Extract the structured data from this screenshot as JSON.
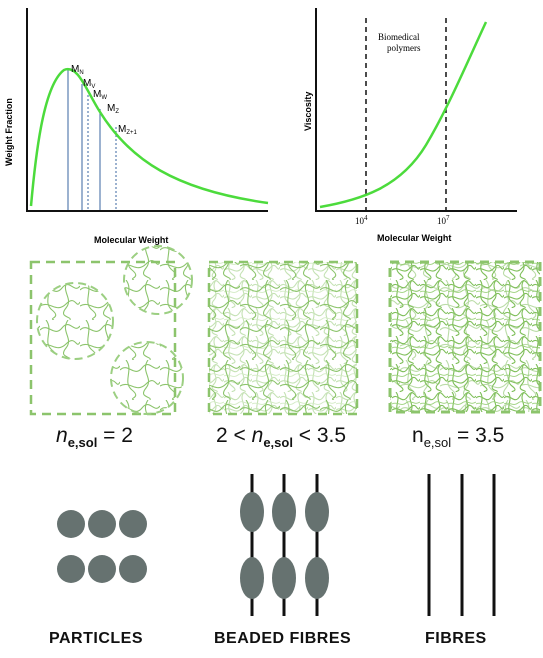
{
  "weight_chart": {
    "xlabel": "Molecular Weight",
    "ylabel": "Weight Fraction",
    "markers": [
      {
        "label": "M",
        "sub": "N"
      },
      {
        "label": "M",
        "sub": "V"
      },
      {
        "label": "M",
        "sub": "W"
      },
      {
        "label": "M",
        "sub": "Z"
      },
      {
        "label": "M",
        "sub": "Z+1"
      }
    ],
    "curve_color": "#4cdb3c",
    "marker_line_color": "#5a7fb0"
  },
  "viscosity_chart": {
    "xlabel": "Molecular Weight",
    "ylabel": "Viscosity",
    "region_label_line1": "Biomedical",
    "region_label_line2": "polymers",
    "tick1_base": "10",
    "tick1_exp": "4",
    "tick2_base": "10",
    "tick2_exp": "7",
    "curve_color": "#4cdb3c"
  },
  "entanglement": {
    "panels": [
      {
        "n": "n",
        "sub": "e,sol",
        "relation_prefix": "",
        "relation_suffix": " = 2"
      },
      {
        "n": "n",
        "sub": "e,sol",
        "relation_prefix": "2 < ",
        "relation_suffix": " < 3.5"
      },
      {
        "n": "n",
        "sub": "e,sol",
        "relation_prefix": "",
        "relation_suffix": " = 3.5"
      }
    ],
    "strand_color": "#8cc46c"
  },
  "morphology": {
    "labels": [
      "PARTICLES",
      "BEADED FIBRES",
      "FIBRES"
    ],
    "bead_color": "#667270",
    "fibre_color": "#111111"
  }
}
